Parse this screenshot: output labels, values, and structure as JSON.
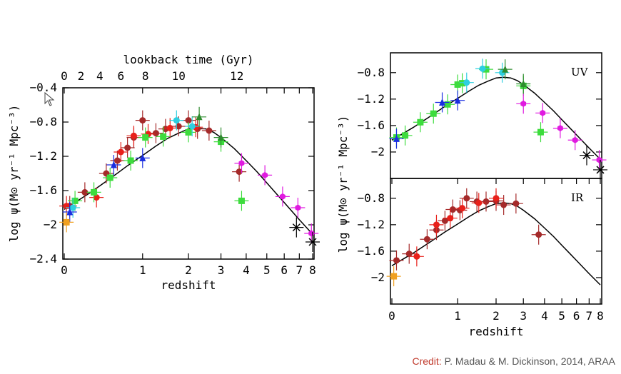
{
  "credit": {
    "label": "Credit:",
    "text": "P. Madau & M. Dickinson, 2014, ARAA"
  },
  "colors": {
    "dark_red": "#a52a2a",
    "red": "#e8201a",
    "green": "#3ddc3d",
    "cyan": "#2ecfe0",
    "blue": "#1a2ee0",
    "magenta": "#e01ae0",
    "orange": "#f0a020",
    "dark_green": "#2e8b2e",
    "black": "#000000"
  },
  "chart_data": [
    {
      "type": "scatter",
      "panel": "left",
      "top_axis": {
        "label": "lookback time (Gyr)",
        "ticks": [
          "0",
          "2",
          "4",
          "6",
          "8",
          "10",
          "12"
        ]
      },
      "xlabel": "redshift",
      "ylabel": "log ψ(M⊙ yr⁻¹ Mpc⁻³)",
      "x_ticks": [
        "0",
        "1",
        "2",
        "3",
        "4",
        "5",
        "6",
        "7",
        "8"
      ],
      "y_ticks": [
        "-0.4",
        "-0.8",
        "-1.2",
        "-1.6",
        "-2",
        "-2.4"
      ],
      "ylim": [
        -2.4,
        -0.4
      ],
      "xscale": "log(1+z)",
      "fit_curve": {
        "x": [
          0,
          0.25,
          0.5,
          0.75,
          1,
          1.25,
          1.5,
          1.75,
          2,
          2.25,
          2.5,
          2.75,
          3,
          3.5,
          4,
          4.5,
          5,
          5.5,
          6,
          7,
          8
        ],
        "y": [
          -1.82,
          -1.63,
          -1.46,
          -1.31,
          -1.19,
          -1.08,
          -0.99,
          -0.93,
          -0.88,
          -0.87,
          -0.88,
          -0.92,
          -0.98,
          -1.11,
          -1.25,
          -1.38,
          -1.51,
          -1.63,
          -1.74,
          -1.94,
          -2.11
        ]
      },
      "series": [
        {
          "color": "#a52a2a",
          "marker": "circle",
          "points": [
            [
              0.05,
              -1.78
            ],
            [
              0.2,
              -1.62
            ],
            [
              0.45,
              -1.4
            ],
            [
              0.6,
              -1.25
            ],
            [
              0.75,
              -1.1
            ],
            [
              0.85,
              -0.98
            ],
            [
              1.0,
              -0.78
            ],
            [
              1.25,
              -0.93
            ],
            [
              1.45,
              -0.88
            ],
            [
              1.75,
              -0.85
            ],
            [
              2.0,
              -0.78
            ],
            [
              2.25,
              -0.88
            ],
            [
              2.6,
              -0.9
            ],
            [
              3.7,
              -1.38
            ]
          ]
        },
        {
          "color": "#e8201a",
          "marker": "circle",
          "points": [
            [
              0.02,
              -1.78
            ],
            [
              0.33,
              -1.68
            ],
            [
              0.65,
              -1.15
            ],
            [
              0.85,
              -0.96
            ],
            [
              1.1,
              -0.94
            ],
            [
              1.55,
              -0.87
            ],
            [
              2.2,
              -0.86
            ]
          ]
        },
        {
          "color": "#3ddc3d",
          "marker": "square",
          "points": [
            [
              0.1,
              -1.72
            ],
            [
              0.3,
              -1.62
            ],
            [
              0.5,
              -1.45
            ],
            [
              0.8,
              -1.25
            ],
            [
              1.05,
              -0.98
            ],
            [
              1.4,
              -0.97
            ],
            [
              2.0,
              -0.92
            ],
            [
              3.0,
              -1.03
            ],
            [
              3.8,
              -1.72
            ]
          ]
        },
        {
          "color": "#2ecfe0",
          "marker": "circle",
          "points": [
            [
              0.08,
              -1.8
            ],
            [
              1.7,
              -0.78
            ],
            [
              2.1,
              -0.85
            ]
          ]
        },
        {
          "color": "#1a2ee0",
          "marker": "triangle",
          "points": [
            [
              0.05,
              -1.85
            ],
            [
              0.55,
              -1.3
            ],
            [
              1.0,
              -1.22
            ]
          ]
        },
        {
          "color": "#2e8b2e",
          "marker": "triangle",
          "points": [
            [
              2.3,
              -0.74
            ],
            [
              3.0,
              -0.98
            ]
          ]
        },
        {
          "color": "#e01ae0",
          "marker": "hexagon",
          "points": [
            [
              3.8,
              -1.28
            ],
            [
              4.9,
              -1.42
            ],
            [
              5.9,
              -1.67
            ],
            [
              6.9,
              -1.8
            ],
            [
              7.9,
              -2.1
            ]
          ]
        },
        {
          "color": "#f0a020",
          "marker": "square",
          "points": [
            [
              0.02,
              -1.97
            ]
          ]
        },
        {
          "color": "#000000",
          "marker": "x",
          "points": [
            [
              6.8,
              -2.03
            ],
            [
              8.0,
              -2.2
            ]
          ]
        }
      ]
    },
    {
      "type": "scatter",
      "panel": "right-top",
      "label": "UV",
      "y_ticks": [
        "-0.8",
        "-1.2",
        "-1.6",
        "-2"
      ],
      "ylim": [
        -2.4,
        -0.5
      ],
      "xscale": "log(1+z)",
      "series": [
        {
          "color": "#3ddc3d",
          "marker": "square",
          "points": [
            [
              0.05,
              -1.78
            ],
            [
              0.15,
              -1.75
            ],
            [
              0.35,
              -1.55
            ],
            [
              0.55,
              -1.42
            ],
            [
              0.8,
              -1.28
            ],
            [
              1.0,
              -0.98
            ],
            [
              1.1,
              -0.96
            ],
            [
              1.7,
              -0.75
            ],
            [
              3.0,
              -1.0
            ],
            [
              3.8,
              -1.7
            ]
          ]
        },
        {
          "color": "#2ecfe0",
          "marker": "circle",
          "points": [
            [
              1.2,
              -0.95
            ],
            [
              1.6,
              -0.74
            ],
            [
              2.2,
              -0.8
            ]
          ]
        },
        {
          "color": "#1a2ee0",
          "marker": "triangle",
          "points": [
            [
              0.05,
              -1.8
            ],
            [
              0.7,
              -1.25
            ],
            [
              1.0,
              -1.22
            ]
          ]
        },
        {
          "color": "#2e8b2e",
          "marker": "triangle",
          "points": [
            [
              2.3,
              -0.75
            ],
            [
              3.0,
              -0.97
            ]
          ]
        },
        {
          "color": "#e01ae0",
          "marker": "hexagon",
          "points": [
            [
              3.0,
              -1.27
            ],
            [
              3.9,
              -1.41
            ],
            [
              4.9,
              -1.64
            ],
            [
              5.9,
              -1.82
            ],
            [
              7.9,
              -2.12
            ]
          ]
        },
        {
          "color": "#000000",
          "marker": "x",
          "points": [
            [
              6.8,
              -2.05
            ],
            [
              8.0,
              -2.27
            ]
          ]
        }
      ]
    },
    {
      "type": "scatter",
      "panel": "right-bottom",
      "label": "IR",
      "xlabel": "redshift",
      "ylabel": "log ψ(M⊙ yr⁻¹ Mpc⁻³)",
      "x_ticks": [
        "0",
        "1",
        "2",
        "3",
        "4",
        "5",
        "6",
        "7",
        "8"
      ],
      "y_ticks": [
        "-0.8",
        "-1.2",
        "-1.6",
        "-2"
      ],
      "ylim": [
        -2.4,
        -0.5
      ],
      "xscale": "log(1+z)",
      "series": [
        {
          "color": "#a52a2a",
          "marker": "circle",
          "points": [
            [
              0.05,
              -1.74
            ],
            [
              0.2,
              -1.64
            ],
            [
              0.45,
              -1.42
            ],
            [
              0.6,
              -1.28
            ],
            [
              0.75,
              -1.14
            ],
            [
              0.9,
              -0.97
            ],
            [
              1.05,
              -0.98
            ],
            [
              1.2,
              -0.8
            ],
            [
              1.45,
              -0.85
            ],
            [
              1.7,
              -0.85
            ],
            [
              2.0,
              -0.84
            ],
            [
              2.25,
              -0.9
            ],
            [
              2.7,
              -0.88
            ],
            [
              3.7,
              -1.35
            ]
          ]
        },
        {
          "color": "#e8201a",
          "marker": "circle",
          "points": [
            [
              0.3,
              -1.68
            ],
            [
              0.6,
              -1.2
            ],
            [
              0.85,
              -1.1
            ],
            [
              1.1,
              -0.95
            ],
            [
              1.5,
              -0.87
            ],
            [
              2.0,
              -0.8
            ]
          ]
        },
        {
          "color": "#f0a020",
          "marker": "square",
          "points": [
            [
              0.02,
              -1.98
            ]
          ]
        }
      ]
    }
  ]
}
